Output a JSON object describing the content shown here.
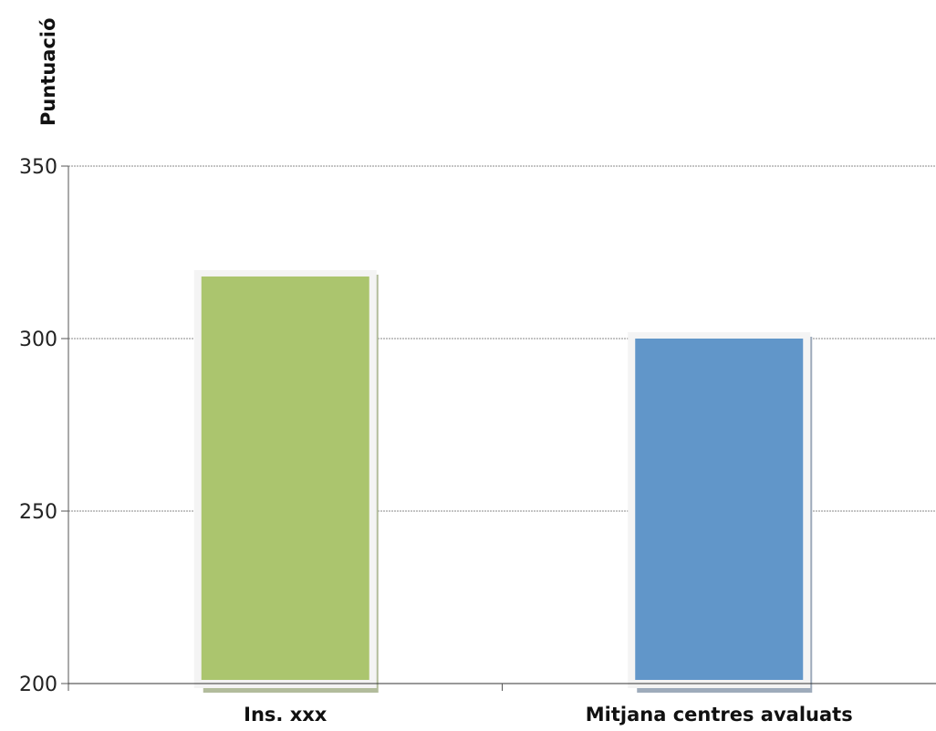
{
  "chart_data": {
    "type": "bar",
    "title": "",
    "ylabel": "Puntuació",
    "xlabel": "",
    "categories": [
      "Ins. xxx",
      "Mitjana centres avaluats"
    ],
    "values": [
      318,
      300
    ],
    "colors": [
      "#abc56e",
      "#6196c9"
    ],
    "shadow_colors": [
      "#b2bc9c",
      "#9eabbb"
    ],
    "ylim": [
      200,
      350
    ],
    "yticks": [
      200,
      250,
      300,
      350
    ],
    "grid": true,
    "legend": "none"
  }
}
